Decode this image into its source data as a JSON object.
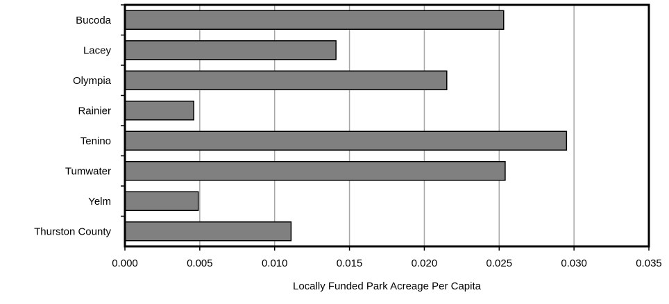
{
  "chart_data": {
    "type": "bar",
    "orientation": "horizontal",
    "categories": [
      "Bucoda",
      "Lacey",
      "Olympia",
      "Rainier",
      "Tenino",
      "Tumwater",
      "Yelm",
      "Thurston County"
    ],
    "values": [
      0.0253,
      0.0141,
      0.0215,
      0.0046,
      0.0295,
      0.0254,
      0.0049,
      0.0111
    ],
    "xlabel": "Locally Funded Park Acreage Per Capita",
    "xlim": [
      0,
      0.035
    ],
    "xticks": [
      "0.000",
      "0.005",
      "0.010",
      "0.015",
      "0.020",
      "0.025",
      "0.030",
      "0.035"
    ],
    "grid": "vertical",
    "bar_color": "#808080",
    "bar_edge_color": "#000000",
    "grid_color": "#a6a6a6"
  }
}
